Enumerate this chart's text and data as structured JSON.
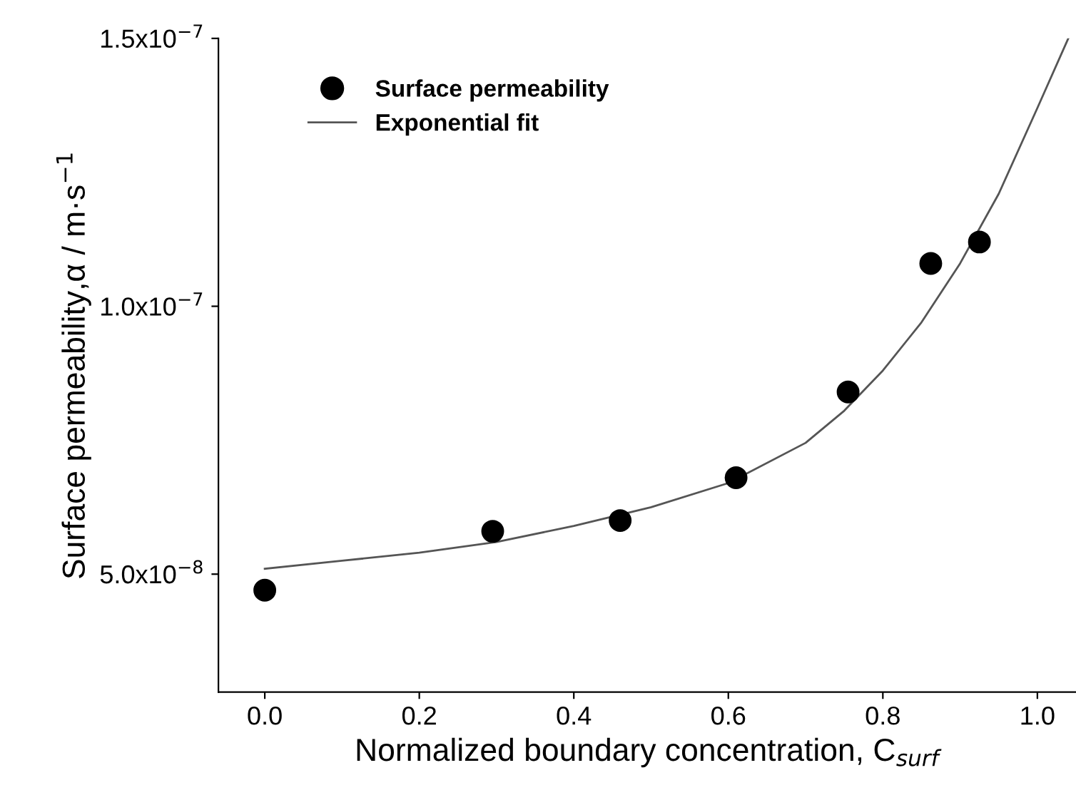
{
  "chart_data": {
    "type": "scatter",
    "xlabel": "Normalized boundary concentration, C$_{surf}$",
    "ylabel": "Surface permeability,α / m·s$^{−1}$",
    "xlim": [
      -0.06,
      1.05
    ],
    "xticks": [
      {
        "value": 0,
        "label": "0.0"
      },
      0.2,
      0.4,
      0.6,
      0.8,
      {
        "value": 1,
        "label": "1.0"
      }
    ],
    "ylim": [
      2.8e-08,
      1.5e-07
    ],
    "yticks": [
      {
        "value": 5e-08,
        "label": "5.0x10$^{−8}$"
      },
      {
        "value": 1e-07,
        "label": "1.0x10$^{−7}$"
      },
      {
        "value": 1.5e-07,
        "label": "1.5x10$^{−7}$"
      }
    ],
    "series": [
      {
        "name": "Surface permeability",
        "color": "#000000",
        "marker": "circle",
        "x": [
          0.0,
          0.295,
          0.46,
          0.61,
          0.755,
          0.862,
          0.925
        ],
        "values": [
          4.7e-08,
          5.8e-08,
          6e-08,
          6.8e-08,
          8.4e-08,
          1.08e-07,
          1.12e-07
        ]
      },
      {
        "name": "Exponential fit",
        "type": "line",
        "color": "#555555",
        "marker": "none",
        "x": [
          0.0,
          0.1,
          0.2,
          0.3,
          0.4,
          0.5,
          0.6,
          0.7,
          0.75,
          0.8,
          0.85,
          0.9,
          0.95,
          1.0,
          1.04
        ],
        "values": [
          5.1e-08,
          5.25e-08,
          5.4e-08,
          5.6e-08,
          5.9e-08,
          6.25e-08,
          6.7e-08,
          7.45e-08,
          8.05e-08,
          8.8e-08,
          9.7e-08,
          1.08e-07,
          1.21e-07,
          1.37e-07,
          1.5e-07
        ]
      }
    ],
    "legend": "top left",
    "grid": false
  }
}
